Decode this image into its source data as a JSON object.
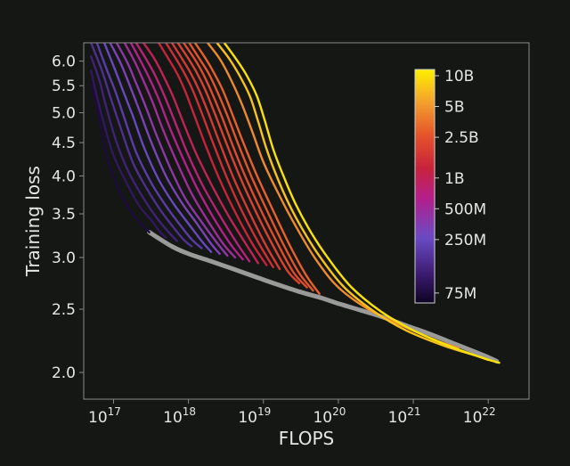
{
  "chart_data": {
    "type": "line",
    "xlabel": "FLOPS",
    "ylabel": "Training loss",
    "x_scale": "log",
    "y_scale": "log",
    "xlim": [
      4e+16,
      3.5e+22
    ],
    "ylim": [
      1.82,
      6.4
    ],
    "grid": false,
    "background": "#141714",
    "frontier_color": "#9a9a9a",
    "x_ticks": [
      {
        "value": 1e+17,
        "base": "10",
        "exp": "17"
      },
      {
        "value": 1e+18,
        "base": "10",
        "exp": "18"
      },
      {
        "value": 1e+19,
        "base": "10",
        "exp": "19"
      },
      {
        "value": 1e+20,
        "base": "10",
        "exp": "20"
      },
      {
        "value": 1e+21,
        "base": "10",
        "exp": "21"
      },
      {
        "value": 1e+22,
        "base": "10",
        "exp": "22"
      }
    ],
    "y_ticks": [
      {
        "value": 6.0,
        "label": "6.0"
      },
      {
        "value": 5.5,
        "label": "5.5"
      },
      {
        "value": 5.0,
        "label": "5.0"
      },
      {
        "value": 4.5,
        "label": "4.5"
      },
      {
        "value": 4.0,
        "label": "4.0"
      },
      {
        "value": 3.5,
        "label": "3.5"
      },
      {
        "value": 3.0,
        "label": "3.0"
      },
      {
        "value": 2.5,
        "label": "2.5"
      },
      {
        "value": 2.0,
        "label": "2.0"
      }
    ],
    "colorbar": {
      "scale": "log",
      "range": [
        60000000.0,
        11500000000.0
      ],
      "stops": [
        {
          "t": 0.0,
          "color": "#0d0322"
        },
        {
          "t": 0.12,
          "color": "#3b1a6e"
        },
        {
          "t": 0.28,
          "color": "#6a4bc4"
        },
        {
          "t": 0.45,
          "color": "#b41f8a"
        },
        {
          "t": 0.58,
          "color": "#c8233a"
        },
        {
          "t": 0.72,
          "color": "#e5542a"
        },
        {
          "t": 0.86,
          "color": "#f3a02e"
        },
        {
          "t": 1.0,
          "color": "#fdf000"
        }
      ],
      "ticks": [
        {
          "value": 10000000000.0,
          "label": "10B"
        },
        {
          "value": 5000000000.0,
          "label": "5B"
        },
        {
          "value": 2500000000.0,
          "label": "2.5B"
        },
        {
          "value": 1000000000.0,
          "label": "1B"
        },
        {
          "value": 500000000.0,
          "label": "500M"
        },
        {
          "value": 250000000.0,
          "label": "250M"
        },
        {
          "value": 75000000.0,
          "label": "75M"
        }
      ]
    },
    "series": [
      {
        "params": 75000000.0,
        "points": [
          [
            5e+16,
            5.55
          ],
          [
            6.3e+16,
            5.0
          ],
          [
            8e+16,
            4.3
          ],
          [
            1e+17,
            4.0
          ],
          [
            1.3e+17,
            3.72
          ],
          [
            1.8e+17,
            3.5
          ],
          [
            2.5e+17,
            3.35
          ],
          [
            3e+17,
            3.28
          ]
        ]
      },
      {
        "params": 100000000.0,
        "points": [
          [
            5e+16,
            5.8
          ],
          [
            6e+16,
            5.3
          ],
          [
            7.5e+16,
            4.8
          ],
          [
            1e+17,
            4.3
          ],
          [
            1.5e+17,
            3.9
          ],
          [
            2.2e+17,
            3.6
          ],
          [
            3.2e+17,
            3.42
          ],
          [
            4.2e+17,
            3.28
          ],
          [
            5e+17,
            3.22
          ]
        ]
      },
      {
        "params": 125000000.0,
        "points": [
          [
            5e+16,
            6.1
          ],
          [
            6.5e+16,
            5.6
          ],
          [
            8e+16,
            5.1
          ],
          [
            1.1e+17,
            4.5
          ],
          [
            1.6e+17,
            4.05
          ],
          [
            2.5e+17,
            3.7
          ],
          [
            3.7e+17,
            3.46
          ],
          [
            5.2e+17,
            3.3
          ],
          [
            7e+17,
            3.18
          ]
        ]
      },
      {
        "params": 160000000.0,
        "points": [
          [
            5e+16,
            6.4
          ],
          [
            7e+16,
            5.8
          ],
          [
            9e+16,
            5.3
          ],
          [
            1.2e+17,
            4.8
          ],
          [
            1.8e+17,
            4.2
          ],
          [
            2.8e+17,
            3.82
          ],
          [
            4.2e+17,
            3.55
          ],
          [
            6e+17,
            3.36
          ],
          [
            8.5e+17,
            3.2
          ],
          [
            1.1e+18,
            3.12
          ]
        ]
      },
      {
        "params": 200000000.0,
        "points": [
          [
            6e+16,
            6.4
          ],
          [
            8e+16,
            5.85
          ],
          [
            1.05e+17,
            5.4
          ],
          [
            1.4e+17,
            4.9
          ],
          [
            2e+17,
            4.35
          ],
          [
            3.2e+17,
            3.9
          ],
          [
            5e+17,
            3.6
          ],
          [
            7.5e+17,
            3.38
          ],
          [
            1.1e+18,
            3.2
          ],
          [
            1.5e+18,
            3.1
          ]
        ]
      },
      {
        "params": 250000000.0,
        "points": [
          [
            7.5e+16,
            6.4
          ],
          [
            1e+17,
            5.9
          ],
          [
            1.3e+17,
            5.45
          ],
          [
            1.8e+17,
            4.95
          ],
          [
            2.6e+17,
            4.4
          ],
          [
            4e+17,
            3.95
          ],
          [
            6.3e+17,
            3.63
          ],
          [
            1e+18,
            3.38
          ],
          [
            1.5e+18,
            3.18
          ],
          [
            2e+18,
            3.06
          ]
        ]
      },
      {
        "params": 320000000.0,
        "points": [
          [
            9e+16,
            6.4
          ],
          [
            1.25e+17,
            5.95
          ],
          [
            1.65e+17,
            5.5
          ],
          [
            2.2e+17,
            5.05
          ],
          [
            3.2e+17,
            4.5
          ],
          [
            5e+17,
            4.0
          ],
          [
            8e+17,
            3.65
          ],
          [
            1.3e+18,
            3.38
          ],
          [
            2e+18,
            3.15
          ],
          [
            2.6e+18,
            3.04
          ]
        ]
      },
      {
        "params": 400000000.0,
        "points": [
          [
            1.1e+17,
            6.4
          ],
          [
            1.55e+17,
            5.95
          ],
          [
            2e+17,
            5.55
          ],
          [
            2.7e+17,
            5.1
          ],
          [
            3.8e+17,
            4.6
          ],
          [
            5.8e+17,
            4.1
          ],
          [
            9e+17,
            3.7
          ],
          [
            1.5e+18,
            3.4
          ],
          [
            2.4e+18,
            3.16
          ],
          [
            3.3e+18,
            3.02
          ]
        ]
      },
      {
        "params": 500000000.0,
        "points": [
          [
            1.4e+17,
            6.4
          ],
          [
            1.9e+17,
            6.0
          ],
          [
            2.5e+17,
            5.6
          ],
          [
            3.3e+17,
            5.2
          ],
          [
            4.6e+17,
            4.7
          ],
          [
            7e+17,
            4.2
          ],
          [
            1.1e+18,
            3.76
          ],
          [
            1.8e+18,
            3.42
          ],
          [
            2.9e+18,
            3.15
          ],
          [
            4.2e+18,
            3.0
          ]
        ]
      },
      {
        "params": 630000000.0,
        "points": [
          [
            1.7e+17,
            6.4
          ],
          [
            2.3e+17,
            6.0
          ],
          [
            3e+17,
            5.65
          ],
          [
            4e+17,
            5.25
          ],
          [
            5.6e+17,
            4.75
          ],
          [
            8.5e+17,
            4.25
          ],
          [
            1.35e+18,
            3.8
          ],
          [
            2.2e+18,
            3.44
          ],
          [
            3.6e+18,
            3.15
          ],
          [
            5.3e+18,
            2.98
          ]
        ]
      },
      {
        "params": 750000000.0,
        "points": [
          [
            2e+17,
            6.4
          ],
          [
            2.7e+17,
            6.05
          ],
          [
            3.6e+17,
            5.7
          ],
          [
            4.8e+17,
            5.3
          ],
          [
            6.8e+17,
            4.8
          ],
          [
            1e+18,
            4.3
          ],
          [
            1.6e+18,
            3.84
          ],
          [
            2.7e+18,
            3.46
          ],
          [
            4.4e+18,
            3.16
          ],
          [
            6.5e+18,
            2.96
          ]
        ]
      },
      {
        "params": 1000000000.0,
        "points": [
          [
            2.5e+17,
            6.4
          ],
          [
            3.5e+17,
            6.05
          ],
          [
            4.6e+17,
            5.7
          ],
          [
            6.2e+17,
            5.3
          ],
          [
            8.6e+17,
            4.82
          ],
          [
            1.3e+18,
            4.3
          ],
          [
            2.1e+18,
            3.85
          ],
          [
            3.5e+18,
            3.46
          ],
          [
            5.8e+18,
            3.15
          ],
          [
            8.5e+18,
            2.94
          ]
        ]
      },
      {
        "params": 1250000000.0,
        "points": [
          [
            4e+17,
            6.4
          ],
          [
            5.4e+17,
            6.05
          ],
          [
            7e+17,
            5.75
          ],
          [
            9e+17,
            5.4
          ],
          [
            1.2e+18,
            4.95
          ],
          [
            1.7e+18,
            4.45
          ],
          [
            2.6e+18,
            3.95
          ],
          [
            4.2e+18,
            3.52
          ],
          [
            7e+18,
            3.16
          ],
          [
            1.1e+19,
            2.92
          ]
        ]
      },
      {
        "params": 1500000000.0,
        "points": [
          [
            5e+17,
            6.4
          ],
          [
            6.8e+17,
            6.05
          ],
          [
            8.8e+17,
            5.75
          ],
          [
            1.15e+18,
            5.4
          ],
          [
            1.55e+18,
            4.95
          ],
          [
            2.2e+18,
            4.45
          ],
          [
            3.3e+18,
            3.96
          ],
          [
            5.2e+18,
            3.53
          ],
          [
            8.6e+18,
            3.16
          ],
          [
            1.35e+19,
            2.9
          ]
        ]
      },
      {
        "params": 1750000000.0,
        "points": [
          [
            6e+17,
            6.4
          ],
          [
            8.2e+17,
            6.05
          ],
          [
            1.07e+18,
            5.75
          ],
          [
            1.4e+18,
            5.4
          ],
          [
            1.9e+18,
            4.95
          ],
          [
            2.7e+18,
            4.45
          ],
          [
            4e+18,
            3.97
          ],
          [
            6.4e+18,
            3.53
          ],
          [
            1.05e+19,
            3.15
          ],
          [
            1.65e+19,
            2.88
          ]
        ]
      },
      {
        "params": 2000000000.0,
        "points": [
          [
            7.2e+17,
            6.4
          ],
          [
            1e+18,
            6.05
          ],
          [
            1.3e+18,
            5.75
          ],
          [
            1.7e+18,
            5.4
          ],
          [
            2.3e+18,
            4.95
          ],
          [
            3.3e+18,
            4.45
          ],
          [
            4.9e+18,
            3.98
          ],
          [
            7.8e+18,
            3.54
          ],
          [
            1.3e+19,
            3.15
          ],
          [
            2.1e+19,
            2.86
          ],
          [
            3e+19,
            2.74
          ]
        ]
      },
      {
        "params": 2300000000.0,
        "points": [
          [
            8.6e+17,
            6.4
          ],
          [
            1.2e+18,
            6.05
          ],
          [
            1.55e+18,
            5.75
          ],
          [
            2e+18,
            5.4
          ],
          [
            2.75e+18,
            4.95
          ],
          [
            3.9e+18,
            4.45
          ],
          [
            5.8e+18,
            3.98
          ],
          [
            9.3e+18,
            3.54
          ],
          [
            1.55e+19,
            3.15
          ],
          [
            2.5e+19,
            2.85
          ],
          [
            3.8e+19,
            2.7
          ]
        ]
      },
      {
        "params": 2600000000.0,
        "points": [
          [
            1.02e+18,
            6.4
          ],
          [
            1.4e+18,
            6.05
          ],
          [
            1.85e+18,
            5.75
          ],
          [
            2.4e+18,
            5.4
          ],
          [
            3.3e+18,
            4.95
          ],
          [
            4.7e+18,
            4.45
          ],
          [
            7e+18,
            3.98
          ],
          [
            1.12e+19,
            3.54
          ],
          [
            1.85e+19,
            3.14
          ],
          [
            3e+19,
            2.84
          ],
          [
            4.6e+19,
            2.67
          ]
        ]
      },
      {
        "params": 3000000000.0,
        "points": [
          [
            1.22e+18,
            6.4
          ],
          [
            1.7e+18,
            6.05
          ],
          [
            2.2e+18,
            5.75
          ],
          [
            2.9e+18,
            5.4
          ],
          [
            3.9e+18,
            4.95
          ],
          [
            5.6e+18,
            4.45
          ],
          [
            8.4e+18,
            3.98
          ],
          [
            1.35e+19,
            3.54
          ],
          [
            2.25e+19,
            3.13
          ],
          [
            3.7e+19,
            2.82
          ],
          [
            5.6e+19,
            2.64
          ]
        ]
      },
      {
        "params": 4500000000.0,
        "points": [
          [
            1.8e+18,
            6.4
          ],
          [
            2.6e+18,
            6.05
          ],
          [
            3.6e+18,
            5.65
          ],
          [
            5e+18,
            5.2
          ],
          [
            7e+18,
            4.7
          ],
          [
            1e+19,
            4.2
          ],
          [
            1.6e+19,
            3.75
          ],
          [
            2.7e+19,
            3.35
          ],
          [
            5e+19,
            2.98
          ],
          [
            1e+20,
            2.7
          ],
          [
            2.5e+20,
            2.5
          ],
          [
            7e+20,
            2.36
          ],
          [
            2e+21,
            2.24
          ],
          [
            4e+21,
            2.18
          ]
        ]
      },
      {
        "params": 7500000000.0,
        "points": [
          [
            2.4e+18,
            6.4
          ],
          [
            3.5e+18,
            6.05
          ],
          [
            4.8e+18,
            5.7
          ],
          [
            6.6e+18,
            5.3
          ],
          [
            8.5e+18,
            4.85
          ],
          [
            1.1e+19,
            4.4
          ],
          [
            1.5e+19,
            4.0
          ],
          [
            2.2e+19,
            3.62
          ],
          [
            3.5e+19,
            3.28
          ],
          [
            6e+19,
            2.98
          ],
          [
            1.2e+20,
            2.7
          ],
          [
            3e+20,
            2.48
          ],
          [
            8e+20,
            2.32
          ],
          [
            2.5e+21,
            2.2
          ],
          [
            7e+21,
            2.12
          ],
          [
            1e+22,
            2.09
          ]
        ]
      },
      {
        "params": 10000000000.0,
        "points": [
          [
            3e+18,
            6.4
          ],
          [
            4.3e+18,
            6.05
          ],
          [
            6e+18,
            5.7
          ],
          [
            8.2e+18,
            5.3
          ],
          [
            1.05e+19,
            4.85
          ],
          [
            1.35e+19,
            4.4
          ],
          [
            1.85e+19,
            4.0
          ],
          [
            2.7e+19,
            3.62
          ],
          [
            4.3e+19,
            3.28
          ],
          [
            7.5e+19,
            2.98
          ],
          [
            1.5e+20,
            2.7
          ],
          [
            3.7e+20,
            2.48
          ],
          [
            1e+21,
            2.32
          ],
          [
            3.2e+21,
            2.19
          ],
          [
            9e+21,
            2.1
          ],
          [
            1.4e+22,
            2.07
          ]
        ]
      }
    ],
    "frontier": [
      [
        3e+17,
        3.28
      ],
      [
        6e+17,
        3.12
      ],
      [
        1e+18,
        3.04
      ],
      [
        2e+18,
        2.96
      ],
      [
        4e+18,
        2.88
      ],
      [
        8e+18,
        2.8
      ],
      [
        1.5e+19,
        2.73
      ],
      [
        3e+19,
        2.66
      ],
      [
        6e+19,
        2.6
      ],
      [
        1e+20,
        2.55
      ],
      [
        2e+20,
        2.49
      ],
      [
        4e+20,
        2.43
      ],
      [
        8e+20,
        2.36
      ],
      [
        1.5e+21,
        2.3
      ],
      [
        3e+21,
        2.23
      ],
      [
        6e+21,
        2.16
      ],
      [
        1e+22,
        2.11
      ],
      [
        1.3e+22,
        2.08
      ]
    ]
  }
}
